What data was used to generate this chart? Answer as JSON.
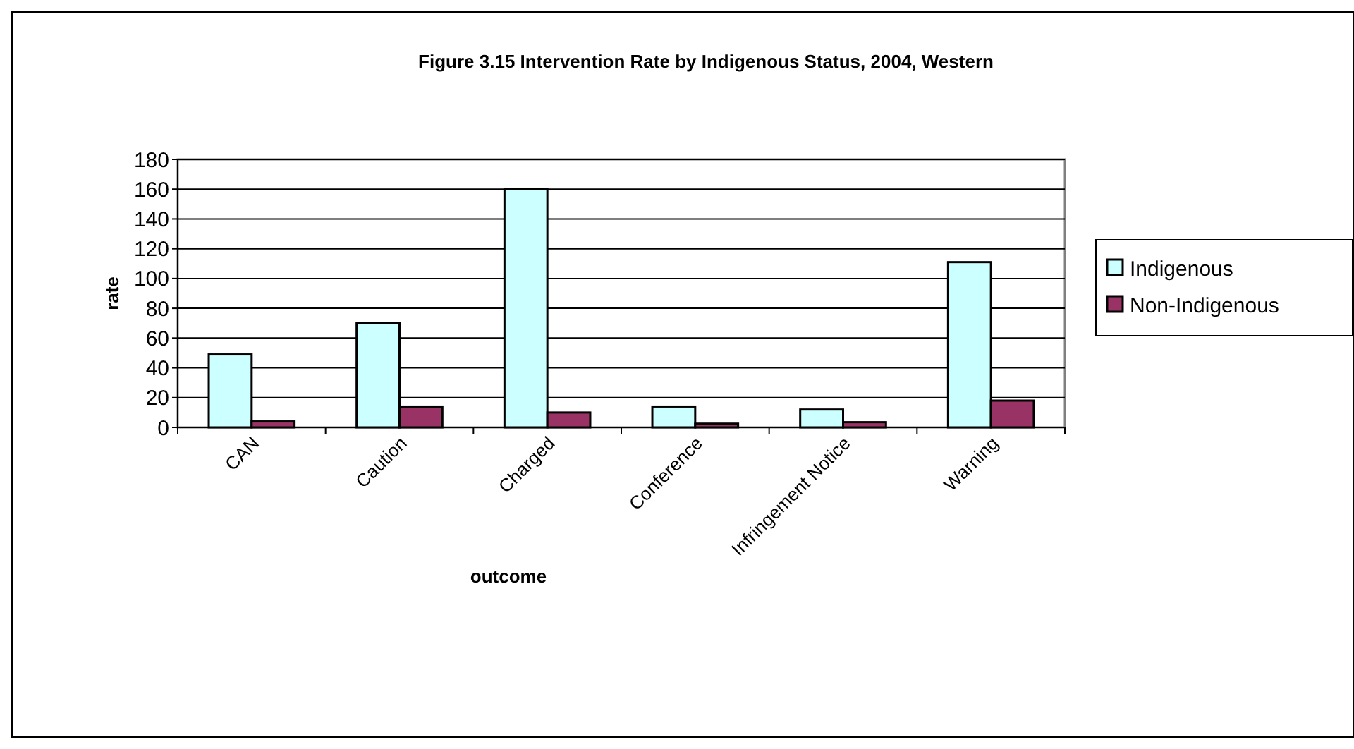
{
  "chart_data": {
    "type": "bar",
    "title": "Figure 3.15 Intervention Rate by Indigenous Status, 2004, Western",
    "xlabel": "outcome",
    "ylabel": "rate",
    "categories": [
      "CAN",
      "Caution",
      "Charged",
      "Conference",
      "Infringement Notice",
      "Warning"
    ],
    "series": [
      {
        "name": "Indigenous",
        "color": "#ccffff",
        "values": [
          49,
          70,
          160,
          14,
          12,
          111
        ]
      },
      {
        "name": "Non-Indigenous",
        "color": "#993366",
        "values": [
          4,
          14,
          10,
          2.5,
          3.5,
          18
        ]
      }
    ],
    "ylim": [
      0,
      180
    ],
    "yticks": [
      0,
      20,
      40,
      60,
      80,
      100,
      120,
      140,
      160,
      180
    ],
    "grid": "y",
    "legend": "right"
  }
}
